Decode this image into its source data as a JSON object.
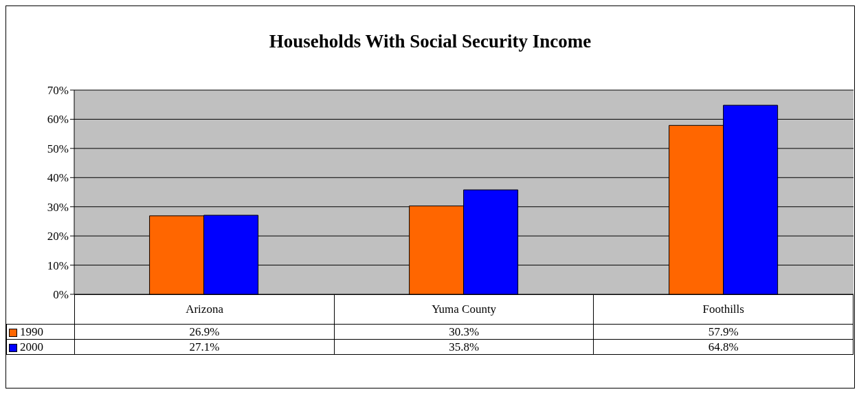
{
  "chart_data": {
    "type": "bar",
    "title": "Households With Social Security Income",
    "categories": [
      "Arizona",
      "Yuma County",
      "Foothills"
    ],
    "series": [
      {
        "name": "1990",
        "color": "#ff6600",
        "values": [
          26.9,
          30.3,
          57.9
        ],
        "value_labels": [
          "26.9%",
          "30.3%",
          "57.9%"
        ]
      },
      {
        "name": "2000",
        "color": "#0000ff",
        "values": [
          27.1,
          35.8,
          64.8
        ],
        "value_labels": [
          "27.1%",
          "35.8%",
          "64.8%"
        ]
      }
    ],
    "ylim": [
      0,
      70
    ],
    "yticks": [
      {
        "value": 0,
        "label": "0%"
      },
      {
        "value": 10,
        "label": "10%"
      },
      {
        "value": 20,
        "label": "20%"
      },
      {
        "value": 30,
        "label": "30%"
      },
      {
        "value": 40,
        "label": "40%"
      },
      {
        "value": 50,
        "label": "50%"
      },
      {
        "value": 60,
        "label": "60%"
      },
      {
        "value": 70,
        "label": "70%"
      }
    ],
    "grid": "y",
    "legend": "bottom"
  }
}
